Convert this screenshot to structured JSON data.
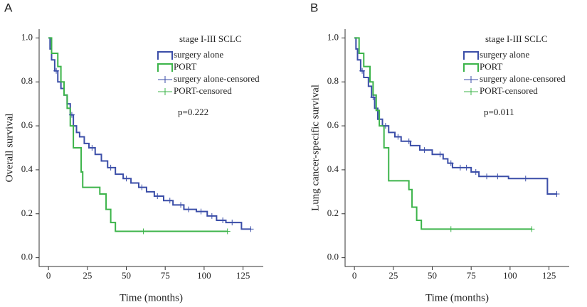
{
  "chart_data": [
    {
      "type": "step",
      "panel_label": "A",
      "legend_title": "stage I-III SCLC",
      "annotation": "p=0.222",
      "xlabel": "Time (months)",
      "ylabel": "Overall survival",
      "xlim": [
        -6,
        138
      ],
      "xticks": [
        0,
        25,
        50,
        75,
        100,
        125
      ],
      "ylim": [
        -0.04,
        1.04
      ],
      "yticks": [
        {
          "value": 0,
          "label": "0.0"
        },
        0.2,
        0.4,
        0.6,
        0.8,
        {
          "value": 1,
          "label": "1.0"
        }
      ],
      "series": [
        {
          "name": "surgery alone",
          "color": "#3b4ea8",
          "style": "line",
          "x": [
            0,
            1,
            2,
            4,
            6,
            8,
            10,
            12,
            14,
            16,
            18,
            20,
            23,
            26,
            30,
            34,
            38,
            43,
            48,
            53,
            58,
            63,
            68,
            74,
            80,
            87,
            95,
            102,
            108,
            114,
            124,
            130
          ],
          "values": [
            1,
            0.95,
            0.9,
            0.85,
            0.8,
            0.77,
            0.74,
            0.7,
            0.65,
            0.6,
            0.57,
            0.55,
            0.52,
            0.5,
            0.47,
            0.44,
            0.41,
            0.38,
            0.36,
            0.34,
            0.32,
            0.3,
            0.28,
            0.26,
            0.24,
            0.22,
            0.21,
            0.19,
            0.17,
            0.16,
            0.13,
            0.13
          ]
        },
        {
          "name": "PORT",
          "color": "#3cb44a",
          "style": "line",
          "x": [
            0,
            2,
            6,
            8,
            10,
            12,
            14,
            16,
            21,
            22,
            33,
            37,
            40,
            43,
            115
          ],
          "values": [
            1,
            0.93,
            0.87,
            0.8,
            0.74,
            0.68,
            0.6,
            0.5,
            0.39,
            0.32,
            0.29,
            0.22,
            0.16,
            0.12,
            0.12
          ]
        },
        {
          "name": "surgery alone-censored",
          "color": "#3b4ea8",
          "style": "censor",
          "x": [
            5,
            15,
            28,
            40,
            50,
            60,
            70,
            78,
            85,
            90,
            98,
            105,
            112,
            118,
            130
          ],
          "values": [
            0.85,
            0.65,
            0.5,
            0.41,
            0.36,
            0.32,
            0.28,
            0.26,
            0.24,
            0.22,
            0.21,
            0.19,
            0.17,
            0.16,
            0.13
          ]
        },
        {
          "name": "PORT-censored",
          "color": "#3cb44a",
          "style": "censor",
          "x": [
            61,
            115
          ],
          "values": [
            0.12,
            0.12
          ]
        }
      ]
    },
    {
      "type": "step",
      "panel_label": "B",
      "legend_title": "stage I-III SCLC",
      "annotation": "p=0.011",
      "xlabel": "Time (months)",
      "ylabel": "Lung cancer-specific survival",
      "xlim": [
        -6,
        138
      ],
      "xticks": [
        0,
        25,
        50,
        75,
        100,
        125
      ],
      "ylim": [
        -0.04,
        1.04
      ],
      "yticks": [
        {
          "value": 0,
          "label": "0.0"
        },
        0.2,
        0.4,
        0.6,
        0.8,
        {
          "value": 1,
          "label": "1.0"
        }
      ],
      "series": [
        {
          "name": "surgery alone",
          "color": "#3b4ea8",
          "style": "line",
          "x": [
            0,
            1,
            2,
            4,
            6,
            9,
            11,
            13,
            15,
            18,
            22,
            26,
            30,
            36,
            42,
            50,
            57,
            60,
            63,
            75,
            80,
            99,
            124,
            130
          ],
          "values": [
            1,
            0.95,
            0.9,
            0.85,
            0.82,
            0.78,
            0.73,
            0.68,
            0.63,
            0.6,
            0.57,
            0.55,
            0.53,
            0.51,
            0.49,
            0.47,
            0.45,
            0.43,
            0.41,
            0.39,
            0.37,
            0.36,
            0.29,
            0.29
          ]
        },
        {
          "name": "PORT",
          "color": "#3cb44a",
          "style": "line",
          "x": [
            0,
            3,
            6,
            10,
            12,
            14,
            16,
            19,
            22,
            35,
            37,
            40,
            43,
            114
          ],
          "values": [
            1,
            0.93,
            0.87,
            0.8,
            0.74,
            0.67,
            0.6,
            0.5,
            0.35,
            0.31,
            0.23,
            0.17,
            0.13,
            0.13
          ]
        },
        {
          "name": "surgery alone-censored",
          "color": "#3b4ea8",
          "style": "censor",
          "x": [
            5,
            12,
            20,
            28,
            35,
            45,
            55,
            62,
            68,
            72,
            78,
            85,
            92,
            110,
            130
          ],
          "values": [
            0.85,
            0.73,
            0.6,
            0.55,
            0.53,
            0.49,
            0.47,
            0.43,
            0.41,
            0.41,
            0.39,
            0.37,
            0.37,
            0.36,
            0.29
          ]
        },
        {
          "name": "PORT-censored",
          "color": "#3cb44a",
          "style": "censor",
          "x": [
            62,
            114
          ],
          "values": [
            0.13,
            0.13
          ]
        }
      ]
    }
  ]
}
